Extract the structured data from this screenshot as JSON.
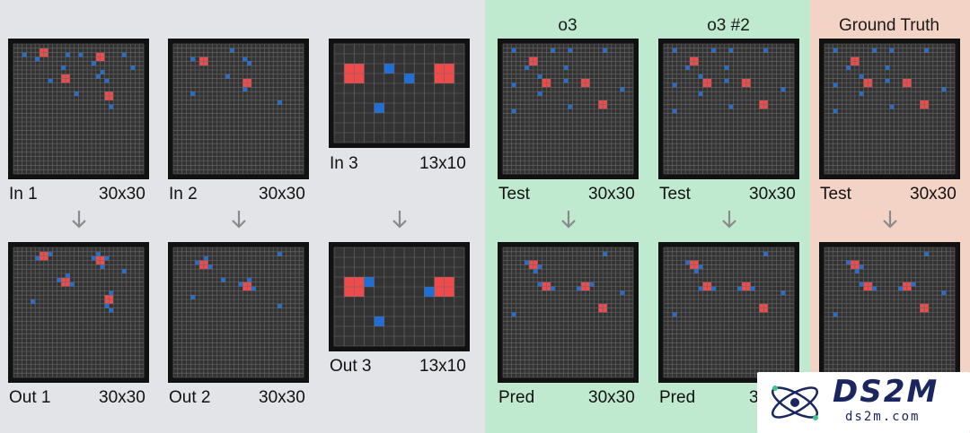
{
  "columns": {
    "o3": "o3",
    "o3_2": "o3 #2",
    "ground_truth": "Ground Truth"
  },
  "colors": {
    "background": "#333333",
    "gridline": "#6a6a6a",
    "red": "#f04a4a",
    "blue": "#1f6fd8"
  },
  "panels": [
    {
      "id": "in1",
      "name": "In 1",
      "size": "30x30",
      "cols": 30,
      "rows": 30,
      "cells": [
        [
          6,
          1,
          "r"
        ],
        [
          7,
          1,
          "r"
        ],
        [
          6,
          2,
          "r"
        ],
        [
          7,
          2,
          "r"
        ],
        [
          19,
          2,
          "r"
        ],
        [
          20,
          2,
          "r"
        ],
        [
          19,
          3,
          "r"
        ],
        [
          20,
          3,
          "r"
        ],
        [
          11,
          7,
          "r"
        ],
        [
          12,
          7,
          "r"
        ],
        [
          11,
          8,
          "r"
        ],
        [
          12,
          8,
          "r"
        ],
        [
          21,
          11,
          "r"
        ],
        [
          22,
          11,
          "r"
        ],
        [
          21,
          12,
          "r"
        ],
        [
          22,
          12,
          "r"
        ],
        [
          2,
          2,
          "b"
        ],
        [
          12,
          2,
          "b"
        ],
        [
          15,
          2,
          "b"
        ],
        [
          25,
          2,
          "b"
        ],
        [
          5,
          3,
          "b"
        ],
        [
          18,
          4,
          "b"
        ],
        [
          11,
          5,
          "b"
        ],
        [
          27,
          5,
          "b"
        ],
        [
          20,
          6,
          "b"
        ],
        [
          19,
          7,
          "b"
        ],
        [
          8,
          8,
          "b"
        ],
        [
          21,
          8,
          "b"
        ],
        [
          14,
          11,
          "b"
        ],
        [
          22,
          14,
          "b"
        ]
      ]
    },
    {
      "id": "in2",
      "name": "In 2",
      "size": "30x30",
      "cols": 30,
      "rows": 30,
      "cells": [
        [
          6,
          3,
          "r"
        ],
        [
          7,
          3,
          "r"
        ],
        [
          6,
          4,
          "r"
        ],
        [
          7,
          4,
          "r"
        ],
        [
          16,
          8,
          "r"
        ],
        [
          17,
          8,
          "r"
        ],
        [
          16,
          9,
          "r"
        ],
        [
          17,
          9,
          "r"
        ],
        [
          13,
          1,
          "b"
        ],
        [
          4,
          3,
          "b"
        ],
        [
          16,
          3,
          "b"
        ],
        [
          17,
          4,
          "b"
        ],
        [
          12,
          7,
          "b"
        ],
        [
          16,
          10,
          "b"
        ],
        [
          4,
          11,
          "b"
        ],
        [
          24,
          13,
          "b"
        ]
      ]
    },
    {
      "id": "in3",
      "name": "In 3",
      "size": "13x10",
      "cols": 13,
      "rows": 10,
      "cells": [
        [
          1,
          2,
          "r"
        ],
        [
          2,
          2,
          "r"
        ],
        [
          1,
          3,
          "r"
        ],
        [
          2,
          3,
          "r"
        ],
        [
          10,
          2,
          "r"
        ],
        [
          11,
          2,
          "r"
        ],
        [
          10,
          3,
          "r"
        ],
        [
          11,
          3,
          "r"
        ],
        [
          5,
          2,
          "b"
        ],
        [
          7,
          3,
          "b"
        ],
        [
          4,
          6,
          "b"
        ]
      ]
    },
    {
      "id": "out1",
      "name": "Out 1",
      "size": "30x30",
      "cols": 30,
      "rows": 30,
      "cells": [
        [
          6,
          1,
          "r"
        ],
        [
          7,
          1,
          "r"
        ],
        [
          6,
          2,
          "r"
        ],
        [
          7,
          2,
          "r"
        ],
        [
          19,
          2,
          "r"
        ],
        [
          20,
          2,
          "r"
        ],
        [
          19,
          3,
          "r"
        ],
        [
          20,
          3,
          "r"
        ],
        [
          11,
          7,
          "r"
        ],
        [
          12,
          7,
          "r"
        ],
        [
          11,
          8,
          "r"
        ],
        [
          12,
          8,
          "r"
        ],
        [
          21,
          11,
          "r"
        ],
        [
          22,
          11,
          "r"
        ],
        [
          21,
          12,
          "r"
        ],
        [
          22,
          12,
          "r"
        ],
        [
          5,
          2,
          "b"
        ],
        [
          8,
          1,
          "b"
        ],
        [
          18,
          2,
          "b"
        ],
        [
          21,
          2,
          "b"
        ],
        [
          19,
          1,
          "b"
        ],
        [
          20,
          4,
          "b"
        ],
        [
          10,
          7,
          "b"
        ],
        [
          12,
          6,
          "b"
        ],
        [
          13,
          8,
          "b"
        ],
        [
          21,
          13,
          "b"
        ],
        [
          22,
          10,
          "b"
        ],
        [
          25,
          5,
          "b"
        ],
        [
          4,
          12,
          "b"
        ],
        [
          22,
          14,
          "b"
        ]
      ]
    },
    {
      "id": "out2",
      "name": "Out 2",
      "size": "30x30",
      "cols": 30,
      "rows": 30,
      "cells": [
        [
          6,
          3,
          "r"
        ],
        [
          7,
          3,
          "r"
        ],
        [
          6,
          4,
          "r"
        ],
        [
          7,
          4,
          "r"
        ],
        [
          16,
          8,
          "r"
        ],
        [
          17,
          8,
          "r"
        ],
        [
          16,
          9,
          "r"
        ],
        [
          17,
          9,
          "r"
        ],
        [
          5,
          3,
          "b"
        ],
        [
          7,
          2,
          "b"
        ],
        [
          8,
          4,
          "b"
        ],
        [
          15,
          8,
          "b"
        ],
        [
          17,
          7,
          "b"
        ],
        [
          18,
          9,
          "b"
        ],
        [
          24,
          1,
          "b"
        ],
        [
          4,
          11,
          "b"
        ],
        [
          24,
          13,
          "b"
        ],
        [
          11,
          7,
          "b"
        ]
      ]
    },
    {
      "id": "out3",
      "name": "Out 3",
      "size": "13x10",
      "cols": 13,
      "rows": 10,
      "cells": [
        [
          1,
          3,
          "r"
        ],
        [
          2,
          3,
          "r"
        ],
        [
          1,
          4,
          "r"
        ],
        [
          2,
          4,
          "r"
        ],
        [
          10,
          3,
          "r"
        ],
        [
          11,
          3,
          "r"
        ],
        [
          10,
          4,
          "r"
        ],
        [
          11,
          4,
          "r"
        ],
        [
          3,
          3,
          "b"
        ],
        [
          9,
          4,
          "b"
        ],
        [
          4,
          7,
          "b"
        ]
      ]
    },
    {
      "id": "test1",
      "name": "Test",
      "size": "30x30",
      "cols": 30,
      "rows": 30,
      "cells": [
        [
          6,
          3,
          "r"
        ],
        [
          7,
          3,
          "r"
        ],
        [
          6,
          4,
          "r"
        ],
        [
          7,
          4,
          "r"
        ],
        [
          9,
          8,
          "r"
        ],
        [
          10,
          8,
          "r"
        ],
        [
          9,
          9,
          "r"
        ],
        [
          10,
          9,
          "r"
        ],
        [
          18,
          8,
          "r"
        ],
        [
          19,
          8,
          "r"
        ],
        [
          18,
          9,
          "r"
        ],
        [
          19,
          9,
          "r"
        ],
        [
          22,
          13,
          "r"
        ],
        [
          23,
          13,
          "r"
        ],
        [
          22,
          14,
          "r"
        ],
        [
          23,
          14,
          "r"
        ],
        [
          2,
          1,
          "b"
        ],
        [
          11,
          1,
          "b"
        ],
        [
          15,
          1,
          "b"
        ],
        [
          23,
          1,
          "b"
        ],
        [
          5,
          5,
          "b"
        ],
        [
          14,
          5,
          "b"
        ],
        [
          8,
          7,
          "b"
        ],
        [
          14,
          8,
          "b"
        ],
        [
          2,
          9,
          "b"
        ],
        [
          27,
          10,
          "b"
        ],
        [
          8,
          11,
          "b"
        ],
        [
          15,
          14,
          "b"
        ],
        [
          2,
          15,
          "b"
        ]
      ]
    },
    {
      "id": "test2",
      "name": "Test",
      "size": "30x30",
      "cols": 30,
      "rows": 30,
      "cells": [
        [
          6,
          3,
          "r"
        ],
        [
          7,
          3,
          "r"
        ],
        [
          6,
          4,
          "r"
        ],
        [
          7,
          4,
          "r"
        ],
        [
          9,
          8,
          "r"
        ],
        [
          10,
          8,
          "r"
        ],
        [
          9,
          9,
          "r"
        ],
        [
          10,
          9,
          "r"
        ],
        [
          18,
          8,
          "r"
        ],
        [
          19,
          8,
          "r"
        ],
        [
          18,
          9,
          "r"
        ],
        [
          19,
          9,
          "r"
        ],
        [
          22,
          13,
          "r"
        ],
        [
          23,
          13,
          "r"
        ],
        [
          22,
          14,
          "r"
        ],
        [
          23,
          14,
          "r"
        ],
        [
          2,
          1,
          "b"
        ],
        [
          11,
          1,
          "b"
        ],
        [
          15,
          1,
          "b"
        ],
        [
          23,
          1,
          "b"
        ],
        [
          5,
          5,
          "b"
        ],
        [
          14,
          5,
          "b"
        ],
        [
          8,
          7,
          "b"
        ],
        [
          14,
          8,
          "b"
        ],
        [
          2,
          9,
          "b"
        ],
        [
          27,
          10,
          "b"
        ],
        [
          8,
          11,
          "b"
        ],
        [
          15,
          14,
          "b"
        ],
        [
          2,
          15,
          "b"
        ]
      ]
    },
    {
      "id": "gt_test",
      "name": "Test",
      "size": "30x30",
      "cols": 30,
      "rows": 30,
      "cells": [
        [
          6,
          3,
          "r"
        ],
        [
          7,
          3,
          "r"
        ],
        [
          6,
          4,
          "r"
        ],
        [
          7,
          4,
          "r"
        ],
        [
          9,
          8,
          "r"
        ],
        [
          10,
          8,
          "r"
        ],
        [
          9,
          9,
          "r"
        ],
        [
          10,
          9,
          "r"
        ],
        [
          18,
          8,
          "r"
        ],
        [
          19,
          8,
          "r"
        ],
        [
          18,
          9,
          "r"
        ],
        [
          19,
          9,
          "r"
        ],
        [
          22,
          13,
          "r"
        ],
        [
          23,
          13,
          "r"
        ],
        [
          22,
          14,
          "r"
        ],
        [
          23,
          14,
          "r"
        ],
        [
          2,
          1,
          "b"
        ],
        [
          11,
          1,
          "b"
        ],
        [
          15,
          1,
          "b"
        ],
        [
          23,
          1,
          "b"
        ],
        [
          5,
          5,
          "b"
        ],
        [
          14,
          5,
          "b"
        ],
        [
          8,
          7,
          "b"
        ],
        [
          14,
          8,
          "b"
        ],
        [
          2,
          9,
          "b"
        ],
        [
          27,
          10,
          "b"
        ],
        [
          8,
          11,
          "b"
        ],
        [
          15,
          14,
          "b"
        ],
        [
          2,
          15,
          "b"
        ]
      ]
    },
    {
      "id": "pred1",
      "name": "Pred",
      "size": "30x30",
      "cols": 30,
      "rows": 30,
      "cells": [
        [
          6,
          3,
          "r"
        ],
        [
          7,
          3,
          "r"
        ],
        [
          6,
          4,
          "r"
        ],
        [
          7,
          4,
          "r"
        ],
        [
          9,
          8,
          "r"
        ],
        [
          10,
          8,
          "r"
        ],
        [
          9,
          9,
          "r"
        ],
        [
          10,
          9,
          "r"
        ],
        [
          18,
          8,
          "r"
        ],
        [
          19,
          8,
          "r"
        ],
        [
          18,
          9,
          "r"
        ],
        [
          19,
          9,
          "r"
        ],
        [
          22,
          13,
          "r"
        ],
        [
          23,
          13,
          "r"
        ],
        [
          22,
          14,
          "r"
        ],
        [
          23,
          14,
          "r"
        ],
        [
          5,
          3,
          "b"
        ],
        [
          8,
          4,
          "b"
        ],
        [
          7,
          5,
          "b"
        ],
        [
          8,
          8,
          "b"
        ],
        [
          11,
          9,
          "b"
        ],
        [
          17,
          9,
          "b"
        ],
        [
          20,
          8,
          "b"
        ],
        [
          23,
          1,
          "b"
        ],
        [
          27,
          10,
          "b"
        ],
        [
          2,
          15,
          "b"
        ]
      ]
    },
    {
      "id": "pred2",
      "name": "Pred",
      "size": "30x30",
      "cols": 30,
      "rows": 30,
      "cells": [
        [
          6,
          3,
          "r"
        ],
        [
          7,
          3,
          "r"
        ],
        [
          6,
          4,
          "r"
        ],
        [
          7,
          4,
          "r"
        ],
        [
          9,
          8,
          "r"
        ],
        [
          10,
          8,
          "r"
        ],
        [
          9,
          9,
          "r"
        ],
        [
          10,
          9,
          "r"
        ],
        [
          18,
          8,
          "r"
        ],
        [
          19,
          8,
          "r"
        ],
        [
          18,
          9,
          "r"
        ],
        [
          19,
          9,
          "r"
        ],
        [
          22,
          13,
          "r"
        ],
        [
          23,
          13,
          "r"
        ],
        [
          22,
          14,
          "r"
        ],
        [
          23,
          14,
          "r"
        ],
        [
          5,
          3,
          "b"
        ],
        [
          8,
          4,
          "b"
        ],
        [
          7,
          5,
          "b"
        ],
        [
          8,
          9,
          "b"
        ],
        [
          11,
          9,
          "b"
        ],
        [
          17,
          9,
          "b"
        ],
        [
          20,
          9,
          "b"
        ],
        [
          23,
          1,
          "b"
        ],
        [
          27,
          10,
          "b"
        ],
        [
          2,
          15,
          "b"
        ]
      ]
    },
    {
      "id": "gt_out",
      "name": "",
      "size": "",
      "cols": 30,
      "rows": 30,
      "cells": [
        [
          6,
          3,
          "r"
        ],
        [
          7,
          3,
          "r"
        ],
        [
          6,
          4,
          "r"
        ],
        [
          7,
          4,
          "r"
        ],
        [
          9,
          8,
          "r"
        ],
        [
          10,
          8,
          "r"
        ],
        [
          9,
          9,
          "r"
        ],
        [
          10,
          9,
          "r"
        ],
        [
          18,
          8,
          "r"
        ],
        [
          19,
          8,
          "r"
        ],
        [
          18,
          9,
          "r"
        ],
        [
          19,
          9,
          "r"
        ],
        [
          22,
          13,
          "r"
        ],
        [
          23,
          13,
          "r"
        ],
        [
          22,
          14,
          "r"
        ],
        [
          23,
          14,
          "r"
        ],
        [
          5,
          3,
          "b"
        ],
        [
          8,
          4,
          "b"
        ],
        [
          7,
          5,
          "b"
        ],
        [
          8,
          8,
          "b"
        ],
        [
          11,
          9,
          "b"
        ],
        [
          17,
          9,
          "b"
        ],
        [
          20,
          8,
          "b"
        ],
        [
          23,
          1,
          "b"
        ],
        [
          27,
          10,
          "b"
        ],
        [
          2,
          15,
          "b"
        ]
      ]
    }
  ],
  "logo": {
    "brand": "DS2M",
    "site": "ds2m.com"
  }
}
